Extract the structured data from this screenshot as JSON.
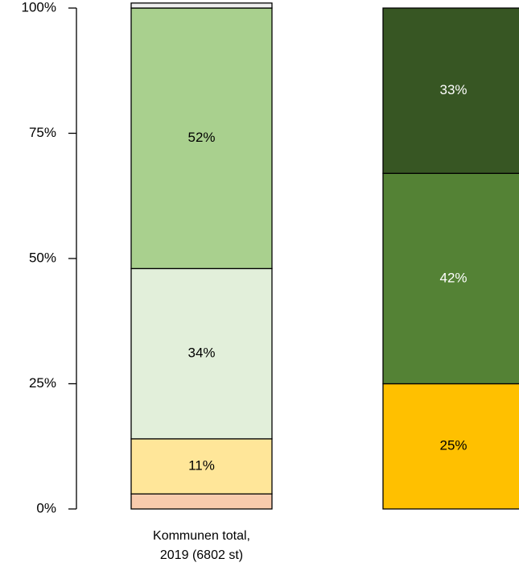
{
  "chart_data": {
    "type": "stacked_bar",
    "categories": [
      "Kommunen total, 2019 (6802 st)",
      null
    ],
    "series": [
      {
        "color": "#f8cbad",
        "values": [
          3,
          null
        ]
      },
      {
        "color": "#ffe699",
        "values": [
          11,
          null
        ],
        "value_labels": [
          "11%",
          null
        ]
      },
      {
        "color": "#e2efda",
        "values": [
          34,
          null
        ],
        "value_labels": [
          "34%",
          null
        ]
      },
      {
        "color": "#a9d08e",
        "values": [
          52,
          null
        ],
        "value_labels": [
          "52%",
          null
        ]
      },
      {
        "color": "#eeeeee",
        "values": [
          1,
          null
        ]
      },
      {
        "color": "#ffc000",
        "values": [
          null,
          25
        ],
        "value_labels": [
          null,
          "25%"
        ]
      },
      {
        "color": "#548235",
        "values": [
          null,
          42
        ],
        "value_labels": [
          null,
          "42%"
        ]
      },
      {
        "color": "#375623",
        "values": [
          null,
          33
        ],
        "value_labels": [
          null,
          "33%"
        ]
      }
    ],
    "ylim": [
      0,
      100
    ],
    "yticks": [
      {
        "value": 0,
        "label": "0%"
      },
      {
        "value": 25,
        "label": "25%"
      },
      {
        "value": 50,
        "label": "50%"
      },
      {
        "value": 75,
        "label": "75%"
      },
      {
        "value": 100,
        "label": "100%"
      }
    ]
  }
}
